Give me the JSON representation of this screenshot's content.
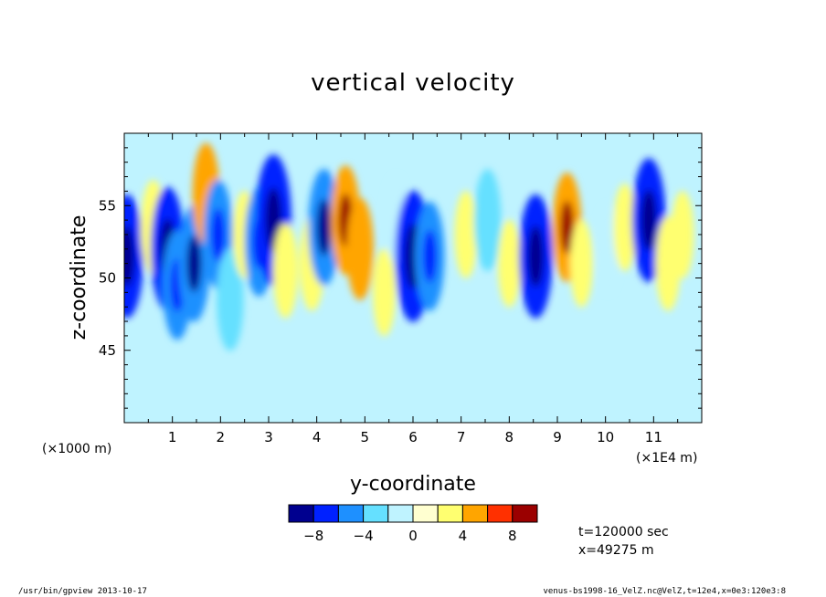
{
  "chart_data": {
    "type": "heatmap",
    "title": "vertical velocity",
    "xlabel": "y-coordinate",
    "ylabel": "z-coordinate",
    "x_unit_left": "(×1000 m)",
    "x_unit_right": "(×1E4 m)",
    "xlim": [
      0,
      12
    ],
    "ylim": [
      40,
      60
    ],
    "x_ticks": [
      "1",
      "2",
      "3",
      "4",
      "5",
      "6",
      "7",
      "8",
      "9",
      "10",
      "11"
    ],
    "y_ticks": [
      "45",
      "50",
      "55"
    ],
    "colorbar": {
      "levels": [
        -10,
        -8,
        -6,
        -4,
        -2,
        0,
        2,
        4,
        6,
        8,
        10
      ],
      "labels": [
        "−8",
        "−4",
        "0",
        "4",
        "8"
      ],
      "colors": [
        "#00008f",
        "#0021ff",
        "#1e90ff",
        "#65e0ff",
        "#bff3ff",
        "#ffffd0",
        "#ffff70",
        "#ffa500",
        "#ff3000",
        "#9b0000"
      ]
    },
    "cells": [
      {
        "y": 0.05,
        "z": 51.5,
        "v": -7
      },
      {
        "y": 0.6,
        "z": 53.5,
        "v": 3
      },
      {
        "y": 0.9,
        "z": 52,
        "v": -7
      },
      {
        "y": 1.1,
        "z": 49.5,
        "v": -5
      },
      {
        "y": 1.45,
        "z": 51,
        "v": -6
      },
      {
        "y": 1.7,
        "z": 55.8,
        "v": 4
      },
      {
        "y": 1.95,
        "z": 53,
        "v": -5
      },
      {
        "y": 2.2,
        "z": 48.5,
        "v": -4
      },
      {
        "y": 2.5,
        "z": 53,
        "v": 2
      },
      {
        "y": 2.8,
        "z": 52.5,
        "v": -5
      },
      {
        "y": 3.1,
        "z": 54,
        "v": -8
      },
      {
        "y": 3.35,
        "z": 50.5,
        "v": 3
      },
      {
        "y": 3.9,
        "z": 51,
        "v": 3
      },
      {
        "y": 4.15,
        "z": 53.5,
        "v": -6
      },
      {
        "y": 4.6,
        "z": 54,
        "v": 5
      },
      {
        "y": 4.9,
        "z": 52,
        "v": 4
      },
      {
        "y": 5.4,
        "z": 49,
        "v": 2
      },
      {
        "y": 5.65,
        "z": 54,
        "v": -2
      },
      {
        "y": 6.0,
        "z": 51.5,
        "v": -8
      },
      {
        "y": 6.35,
        "z": 51.5,
        "v": -5
      },
      {
        "y": 7.1,
        "z": 53,
        "v": 2
      },
      {
        "y": 7.55,
        "z": 54,
        "v": -4
      },
      {
        "y": 8.0,
        "z": 51,
        "v": 2
      },
      {
        "y": 8.55,
        "z": 51.5,
        "v": -7
      },
      {
        "y": 9.2,
        "z": 53.5,
        "v": 5
      },
      {
        "y": 9.5,
        "z": 51,
        "v": 2
      },
      {
        "y": 10.05,
        "z": 52,
        "v": -2
      },
      {
        "y": 10.4,
        "z": 53.5,
        "v": 2
      },
      {
        "y": 10.9,
        "z": 54,
        "v": -7
      },
      {
        "y": 11.3,
        "z": 51,
        "v": 3
      },
      {
        "y": 11.6,
        "z": 53,
        "v": 2
      }
    ]
  },
  "info": {
    "time": "t=120000 sec",
    "xpos": "x=49275 m"
  },
  "footer": {
    "left": "/usr/bin/gpview  2013-10-17",
    "right": "venus-bs1998-16_VelZ.nc@VelZ,t=12e4,x=0e3:120e3:8"
  }
}
